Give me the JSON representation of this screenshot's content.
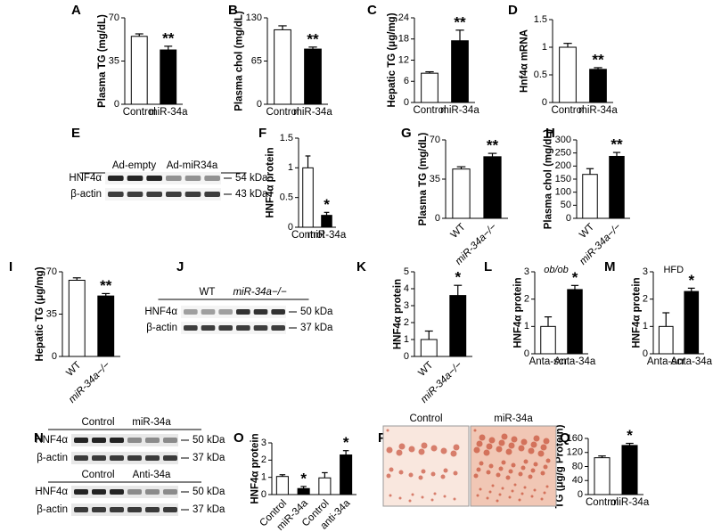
{
  "chart_data": [
    {
      "type": "bar",
      "panel": "A",
      "y_label": "Plasma TG (mg/dL)",
      "categories": [
        "Control",
        "miR-34a"
      ],
      "values": [
        55,
        44
      ],
      "errors": [
        2,
        3
      ],
      "colors": [
        "#ffffff",
        "#000000"
      ],
      "ylim": [
        0,
        70
      ],
      "yticks": [
        0,
        35,
        70
      ],
      "annotations": [
        {
          "text": "**",
          "at": 1
        }
      ]
    },
    {
      "type": "bar",
      "panel": "B",
      "y_label": "Plasma chol (mg/dL)",
      "categories": [
        "Control",
        "miR-34a"
      ],
      "values": [
        112,
        83
      ],
      "errors": [
        6,
        3
      ],
      "colors": [
        "#ffffff",
        "#000000"
      ],
      "ylim": [
        0,
        130
      ],
      "yticks": [
        0,
        65,
        130
      ],
      "annotations": [
        {
          "text": "**",
          "at": 1
        }
      ]
    },
    {
      "type": "bar",
      "panel": "C",
      "y_label": "Hepatic TG (μg/mg)",
      "categories": [
        "Control",
        "miR-34a"
      ],
      "values": [
        8.3,
        17.5
      ],
      "errors": [
        0.4,
        3
      ],
      "colors": [
        "#ffffff",
        "#000000"
      ],
      "ylim": [
        0,
        24
      ],
      "yticks": [
        0,
        6,
        12,
        18,
        24
      ],
      "annotations": [
        {
          "text": "**",
          "at": 1
        }
      ]
    },
    {
      "type": "bar",
      "panel": "D",
      "y_label": "Hnf4α mRNA",
      "categories": [
        "Control",
        "miR-34a"
      ],
      "values": [
        1.0,
        0.6
      ],
      "errors": [
        0.07,
        0.03
      ],
      "colors": [
        "#ffffff",
        "#000000"
      ],
      "ylim": [
        0,
        1.5
      ],
      "yticks": [
        0,
        0.5,
        1,
        1.5
      ],
      "annotations": [
        {
          "text": "**",
          "at": 1
        }
      ]
    },
    {
      "type": "bar",
      "panel": "F",
      "y_label": "HNF4α protein",
      "categories": [
        "Control",
        "miR-34a"
      ],
      "values": [
        1.0,
        0.2
      ],
      "errors": [
        0.2,
        0.05
      ],
      "colors": [
        "#ffffff",
        "#000000"
      ],
      "ylim": [
        0,
        1.5
      ],
      "yticks": [
        0,
        0.5,
        1,
        1.5
      ],
      "annotations": [
        {
          "text": "*",
          "at": 1
        }
      ]
    },
    {
      "type": "bar",
      "panel": "G",
      "y_label": "Plasma TG (mg/dL)",
      "categories": [
        "WT",
        "miR-34a−/−"
      ],
      "values": [
        44,
        55
      ],
      "errors": [
        2,
        3
      ],
      "colors": [
        "#ffffff",
        "#000000"
      ],
      "ylim": [
        0,
        70
      ],
      "yticks": [
        0,
        35,
        70
      ],
      "annotations": [
        {
          "text": "**",
          "at": 1
        }
      ]
    },
    {
      "type": "bar",
      "panel": "H",
      "y_label": "Plasma chol (mg/dL)",
      "categories": [
        "WT",
        "miR-34a−/−"
      ],
      "values": [
        168,
        237
      ],
      "errors": [
        22,
        15
      ],
      "colors": [
        "#ffffff",
        "#000000"
      ],
      "ylim": [
        0,
        300
      ],
      "yticks": [
        0,
        50,
        100,
        150,
        200,
        250,
        300
      ],
      "annotations": [
        {
          "text": "**",
          "at": 1
        }
      ]
    },
    {
      "type": "bar",
      "panel": "I",
      "y_label": "Hepatic TG (μg/mg)",
      "categories": [
        "WT",
        "miR-34a−/−"
      ],
      "values": [
        63,
        50
      ],
      "errors": [
        2,
        2
      ],
      "colors": [
        "#ffffff",
        "#000000"
      ],
      "ylim": [
        0,
        70
      ],
      "yticks": [
        0,
        35,
        70
      ],
      "annotations": [
        {
          "text": "**",
          "at": 1
        }
      ]
    },
    {
      "type": "bar",
      "panel": "K",
      "y_label": "HNF4α protein",
      "categories": [
        "WT",
        "miR-34a−/−"
      ],
      "values": [
        1.0,
        3.6
      ],
      "errors": [
        0.5,
        0.6
      ],
      "colors": [
        "#ffffff",
        "#000000"
      ],
      "ylim": [
        0,
        5
      ],
      "yticks": [
        0,
        1,
        2,
        3,
        4,
        5
      ],
      "annotations": [
        {
          "text": "*",
          "at": 1
        }
      ]
    },
    {
      "type": "bar",
      "panel": "L",
      "subtitle": "ob/ob",
      "y_label": "HNF4α protein",
      "categories": [
        "Anta-scr",
        "Anta-34a"
      ],
      "values": [
        1.0,
        2.35
      ],
      "errors": [
        0.35,
        0.15
      ],
      "colors": [
        "#ffffff",
        "#000000"
      ],
      "ylim": [
        0,
        3
      ],
      "yticks": [
        0,
        1,
        2,
        3
      ],
      "annotations": [
        {
          "text": "*",
          "at": 1
        }
      ]
    },
    {
      "type": "bar",
      "panel": "M",
      "subtitle": "HFD",
      "y_label": "HNF4α protein",
      "categories": [
        "Anta-scr",
        "Anta-34a"
      ],
      "values": [
        1.0,
        2.28
      ],
      "errors": [
        0.5,
        0.12
      ],
      "colors": [
        "#ffffff",
        "#000000"
      ],
      "ylim": [
        0,
        3
      ],
      "yticks": [
        0,
        1,
        2,
        3
      ],
      "annotations": [
        {
          "text": "*",
          "at": 1
        }
      ]
    },
    {
      "type": "bar",
      "panel": "O",
      "y_label": "HNF4α protein",
      "categories": [
        "Control",
        "miR-34a",
        "Control",
        "anti-34a"
      ],
      "values": [
        1.05,
        0.35,
        0.97,
        2.3
      ],
      "errors": [
        0.1,
        0.12,
        0.3,
        0.25
      ],
      "colors": [
        "#ffffff",
        "#000000",
        "#ffffff",
        "#000000"
      ],
      "ylim": [
        0,
        3
      ],
      "yticks": [
        0,
        1,
        2,
        3
      ],
      "annotations": [
        {
          "text": "*",
          "at": 1
        },
        {
          "text": "*",
          "at": 3
        }
      ]
    },
    {
      "type": "bar",
      "panel": "Q",
      "y_label": "TG (μg/g Protein)",
      "categories": [
        "Control",
        "miR-34a"
      ],
      "values": [
        105,
        140
      ],
      "errors": [
        5,
        6
      ],
      "colors": [
        "#ffffff",
        "#000000"
      ],
      "ylim": [
        0,
        160
      ],
      "yticks": [
        0,
        40,
        80,
        120,
        160
      ],
      "annotations": [
        {
          "text": "*",
          "at": 1
        }
      ]
    }
  ],
  "blots": [
    {
      "panel": "E",
      "blocks": [
        {
          "groups": [
            "Ad-empty",
            "Ad-miR34a"
          ],
          "rows": [
            {
              "label": "HNF4α",
              "size": "54 kDa"
            },
            {
              "label": "β-actin",
              "size": "43 kDa"
            }
          ]
        }
      ]
    },
    {
      "panel": "J",
      "blocks": [
        {
          "groups": [
            "WT",
            "miR-34a−/−"
          ],
          "rows": [
            {
              "label": "HNF4α",
              "size": "50 kDa"
            },
            {
              "label": "β-actin",
              "size": "37 kDa"
            }
          ]
        }
      ]
    },
    {
      "panel": "N",
      "blocks": [
        {
          "groups": [
            "Control",
            "miR-34a"
          ],
          "rows": [
            {
              "label": "HNF4α",
              "size": "50 kDa"
            },
            {
              "label": "β-actin",
              "size": "37 kDa"
            }
          ]
        },
        {
          "groups": [
            "Control",
            "Anti-34a"
          ],
          "rows": [
            {
              "label": "HNF4α",
              "size": "50 kDa"
            },
            {
              "label": "β-actin",
              "size": "37 kDa"
            }
          ]
        }
      ]
    }
  ],
  "images": {
    "panel": "P",
    "labels": [
      "Control",
      "miR-34a"
    ]
  }
}
